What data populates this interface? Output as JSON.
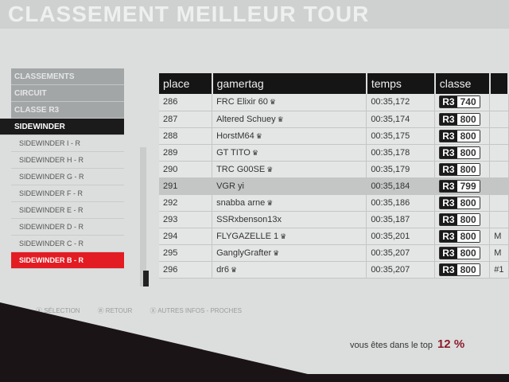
{
  "header": {
    "title": "CLASSEMENT MEILLEUR TOUR"
  },
  "menu": {
    "crumbs": [
      "CLASSEMENTS",
      "CIRCUIT",
      "CLASSE R3"
    ],
    "active": "SIDEWINDER",
    "items": [
      "SIDEWINDER I - R",
      "SIDEWINDER H - R",
      "SIDEWINDER G - R",
      "SIDEWINDER F - R",
      "SIDEWINDER E - R",
      "SIDEWINDER D - R",
      "SIDEWINDER C - R",
      "SIDEWINDER B - R"
    ],
    "selected_index": 7
  },
  "table": {
    "columns": [
      "place",
      "gamertag",
      "temps",
      "classe"
    ],
    "rows": [
      {
        "place": "286",
        "gamertag": "FRC Elixir 60",
        "crown": true,
        "temps": "00:35,172",
        "class": "R3",
        "pi": "740",
        "extra": ""
      },
      {
        "place": "287",
        "gamertag": "Altered Schuey",
        "crown": true,
        "temps": "00:35,174",
        "class": "R3",
        "pi": "800",
        "extra": ""
      },
      {
        "place": "288",
        "gamertag": "HorstM64",
        "crown": true,
        "temps": "00:35,175",
        "class": "R3",
        "pi": "800",
        "extra": ""
      },
      {
        "place": "289",
        "gamertag": "GT TITO",
        "crown": true,
        "temps": "00:35,178",
        "class": "R3",
        "pi": "800",
        "extra": ""
      },
      {
        "place": "290",
        "gamertag": "TRC G00SE",
        "crown": true,
        "temps": "00:35,179",
        "class": "R3",
        "pi": "800",
        "extra": ""
      },
      {
        "place": "291",
        "gamertag": "VGR yi",
        "crown": false,
        "temps": "00:35,184",
        "class": "R3",
        "pi": "799",
        "extra": "",
        "highlight": true
      },
      {
        "place": "292",
        "gamertag": "snabba arne",
        "crown": true,
        "temps": "00:35,186",
        "class": "R3",
        "pi": "800",
        "extra": ""
      },
      {
        "place": "293",
        "gamertag": "SSRxbenson13x",
        "crown": false,
        "temps": "00:35,187",
        "class": "R3",
        "pi": "800",
        "extra": ""
      },
      {
        "place": "294",
        "gamertag": "FLYGAZELLE 1",
        "crown": true,
        "temps": "00:35,201",
        "class": "R3",
        "pi": "800",
        "extra": "M"
      },
      {
        "place": "295",
        "gamertag": "GanglyGrafter",
        "crown": true,
        "temps": "00:35,207",
        "class": "R3",
        "pi": "800",
        "extra": "M"
      },
      {
        "place": "296",
        "gamertag": "dr6",
        "crown": true,
        "temps": "00:35,207",
        "class": "R3",
        "pi": "800",
        "extra": "#1"
      }
    ]
  },
  "footer": {
    "buttons": [
      "Ⓐ SÉLECTION",
      "Ⓑ RETOUR",
      "Ⓧ AUTRES INFOS - PROCHES"
    ]
  },
  "top": {
    "label": "vous êtes dans le top",
    "value": "12 %"
  },
  "colors": {
    "accent": "#e31c23",
    "header": "#151515",
    "percent": "#8c1b2d"
  }
}
